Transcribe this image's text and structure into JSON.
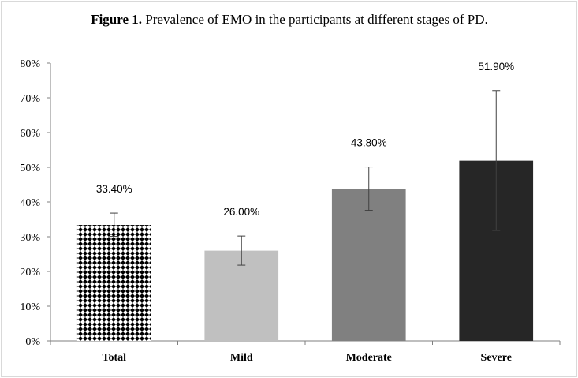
{
  "chart_data": {
    "type": "bar",
    "title_prefix": "Figure 1.",
    "title_rest": " Prevalence of EMO in the participants at different stages of PD.",
    "categories": [
      "Total",
      "Mild",
      "Moderate",
      "Severe"
    ],
    "values": [
      33.4,
      26.0,
      43.8,
      51.9
    ],
    "error_low": [
      30.1,
      21.8,
      37.6,
      31.8
    ],
    "error_high": [
      36.8,
      30.2,
      50.1,
      72.1
    ],
    "data_labels": [
      "33.40%",
      "26.00%",
      "43.80%",
      "51.90%"
    ],
    "bar_colors": [
      "pattern:checker",
      "#c0c0c0",
      "#808080",
      "#262626"
    ],
    "y_ticks": [
      0,
      10,
      20,
      30,
      40,
      50,
      60,
      70,
      80
    ],
    "y_tick_labels": [
      "0%",
      "10%",
      "20%",
      "30%",
      "40%",
      "50%",
      "60%",
      "70%",
      "80%"
    ],
    "ylim": [
      0,
      80
    ],
    "xlabel": "",
    "ylabel": "",
    "grid": false,
    "legend": "none"
  }
}
